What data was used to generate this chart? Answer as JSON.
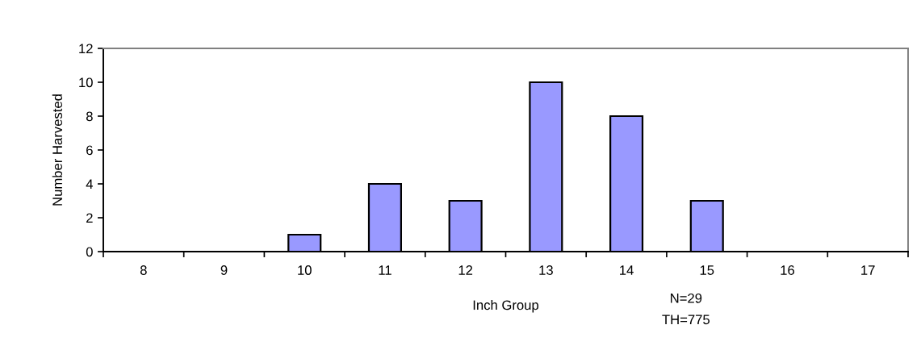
{
  "chart_data": {
    "type": "bar",
    "categories": [
      "8",
      "9",
      "10",
      "11",
      "12",
      "13",
      "14",
      "15",
      "16",
      "17"
    ],
    "values": [
      0,
      0,
      1,
      4,
      3,
      10,
      8,
      3,
      0,
      0
    ],
    "color": "#9999ff",
    "xlabel": "Inch Group",
    "ylabel": "Number Harvested",
    "ylim": [
      0,
      12
    ],
    "yticks": [
      0,
      2,
      4,
      6,
      8,
      10,
      12
    ],
    "annotations": [
      "N=29",
      "TH=775"
    ]
  }
}
